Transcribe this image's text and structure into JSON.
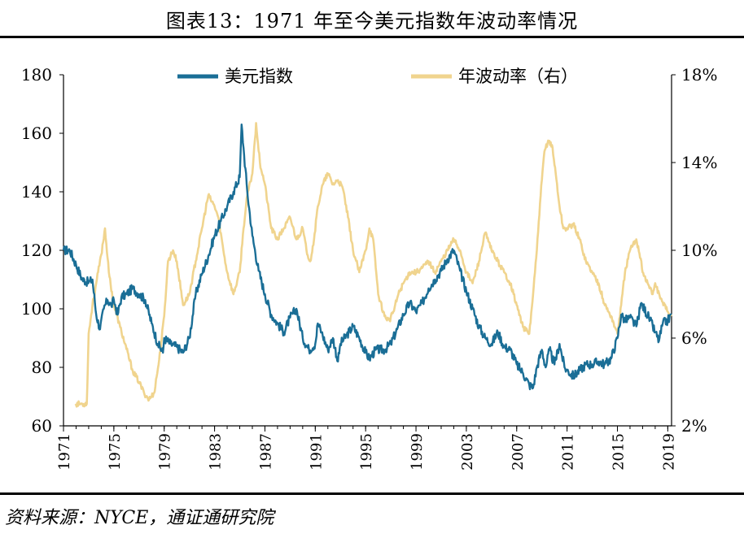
{
  "title": "图表13：1971 年至今美元指数年波动率情况",
  "source": "资料来源：NYCE，通证通研究院",
  "chart_data": {
    "type": "line",
    "title": "图表13：1971 年至今美元指数年波动率情况",
    "legend_position": "top",
    "grid": false,
    "x_ticks": [
      "1971",
      "1975",
      "1979",
      "1983",
      "1987",
      "1991",
      "1995",
      "1999",
      "2003",
      "2007",
      "2011",
      "2015",
      "2019"
    ],
    "xlim": [
      1971.0,
      2019.3
    ],
    "y_left": {
      "ylim": [
        60,
        180
      ],
      "ticks": [
        "60",
        "80",
        "100",
        "120",
        "140",
        "160",
        "180"
      ]
    },
    "y_right": {
      "ylim": [
        2,
        18
      ],
      "ticks": [
        "2%",
        "6%",
        "10%",
        "14%",
        "18%"
      ]
    },
    "series": [
      {
        "name": "美元指数",
        "axis": "left",
        "color": "#1a6e96",
        "x": [
          1971.0,
          1971.5,
          1972.0,
          1972.5,
          1973.0,
          1973.3,
          1973.6,
          1973.9,
          1974.2,
          1974.5,
          1974.8,
          1975.0,
          1975.3,
          1975.6,
          1976.0,
          1976.5,
          1977.0,
          1977.5,
          1978.0,
          1978.5,
          1978.9,
          1979.0,
          1979.5,
          1980.0,
          1980.5,
          1981.0,
          1981.5,
          1982.0,
          1982.5,
          1983.0,
          1983.5,
          1984.0,
          1984.5,
          1985.0,
          1985.15,
          1985.3,
          1985.6,
          1986.0,
          1986.5,
          1987.0,
          1987.5,
          1988.0,
          1988.5,
          1989.0,
          1989.5,
          1990.0,
          1990.5,
          1991.0,
          1991.2,
          1991.5,
          1992.0,
          1992.4,
          1992.8,
          1993.0,
          1993.5,
          1994.0,
          1994.5,
          1995.0,
          1995.3,
          1995.8,
          1996.5,
          1997.0,
          1997.5,
          1998.0,
          1998.5,
          1999.0,
          1999.5,
          2000.0,
          2000.5,
          2001.0,
          2001.5,
          2002.0,
          2002.5,
          2003.0,
          2003.5,
          2004.0,
          2004.5,
          2005.0,
          2005.5,
          2006.0,
          2006.5,
          2007.0,
          2007.5,
          2008.0,
          2008.3,
          2008.6,
          2009.0,
          2009.3,
          2009.6,
          2010.0,
          2010.4,
          2010.8,
          2011.0,
          2011.5,
          2012.0,
          2012.5,
          2013.0,
          2013.5,
          2014.0,
          2014.5,
          2015.0,
          2015.3,
          2015.6,
          2016.0,
          2016.5,
          2016.9,
          2017.0,
          2017.5,
          2018.0,
          2018.3,
          2018.6,
          2019.0,
          2019.3
        ],
        "values": [
          120,
          120,
          115,
          110,
          109,
          110,
          98,
          93,
          100,
          103,
          101,
          103,
          98,
          104,
          105,
          107,
          105,
          103,
          95,
          88,
          85,
          90,
          88,
          87,
          85,
          90,
          105,
          112,
          118,
          125,
          130,
          135,
          140,
          145,
          163,
          155,
          140,
          125,
          113,
          105,
          98,
          95,
          92,
          97,
          100,
          90,
          86,
          88,
          95,
          92,
          86,
          90,
          82,
          88,
          91,
          94,
          90,
          85,
          83,
          86,
          86,
          88,
          93,
          98,
          102,
          99,
          102,
          107,
          110,
          113,
          117,
          120,
          113,
          106,
          100,
          94,
          90,
          88,
          92,
          87,
          86,
          81,
          78,
          74,
          73,
          80,
          86,
          80,
          86,
          81,
          88,
          80,
          79,
          77,
          79,
          81,
          81,
          82,
          81,
          83,
          90,
          98,
          96,
          97,
          94,
          102,
          101,
          97,
          92,
          89,
          95,
          96,
          98
        ]
      },
      {
        "name": "年波动率（右）",
        "axis": "right",
        "color": "#f0d48e",
        "x": [
          1971.95,
          1972.5,
          1972.85,
          1973.0,
          1973.3,
          1973.6,
          1974.0,
          1974.3,
          1974.6,
          1975.0,
          1975.5,
          1976.0,
          1976.5,
          1977.0,
          1977.4,
          1977.8,
          1978.2,
          1978.6,
          1979.0,
          1979.3,
          1979.7,
          1980.0,
          1980.5,
          1981.0,
          1981.5,
          1982.0,
          1982.5,
          1983.0,
          1983.3,
          1983.7,
          1984.0,
          1984.5,
          1985.0,
          1985.3,
          1985.6,
          1986.0,
          1986.3,
          1986.6,
          1987.0,
          1987.5,
          1988.0,
          1988.5,
          1989.0,
          1989.5,
          1990.0,
          1990.3,
          1990.6,
          1990.9,
          1991.2,
          1991.6,
          1992.0,
          1992.4,
          1992.8,
          1993.2,
          1993.6,
          1994.0,
          1994.5,
          1995.0,
          1995.3,
          1995.6,
          1996.0,
          1996.5,
          1996.9,
          1997.2,
          1997.6,
          1998.0,
          1998.5,
          1999.0,
          1999.5,
          2000.0,
          2000.5,
          2001.0,
          2001.5,
          2002.0,
          2002.5,
          2003.0,
          2003.5,
          2004.0,
          2004.5,
          2005.0,
          2005.5,
          2006.0,
          2006.5,
          2007.0,
          2007.5,
          2008.0,
          2008.3,
          2008.6,
          2008.9,
          2009.2,
          2009.5,
          2009.8,
          2010.1,
          2010.4,
          2010.7,
          2011.0,
          2011.5,
          2012.0,
          2012.5,
          2013.0,
          2013.5,
          2014.0,
          2014.5,
          2014.8,
          2015.0,
          2015.3,
          2015.6,
          2016.0,
          2016.5,
          2016.9,
          2017.0,
          2017.4,
          2017.8,
          2018.0,
          2018.4,
          2018.8,
          2019.0,
          2019.3
        ],
        "values": [
          3.0,
          3.0,
          3.0,
          6.2,
          7.5,
          8.5,
          9.8,
          11.0,
          9.0,
          7.5,
          6.5,
          5.5,
          4.5,
          4.0,
          3.5,
          3.2,
          3.5,
          5.0,
          7.0,
          9.5,
          10.0,
          9.5,
          7.5,
          8.0,
          9.5,
          11.0,
          12.5,
          12.0,
          11.5,
          10.0,
          9.0,
          8.0,
          9.0,
          11.0,
          12.5,
          13.5,
          15.8,
          14.0,
          13.0,
          11.0,
          10.5,
          11.0,
          11.5,
          10.5,
          11.0,
          10.0,
          9.5,
          10.5,
          12.0,
          13.0,
          13.5,
          13.0,
          13.2,
          12.8,
          11.5,
          10.0,
          9.0,
          10.0,
          11.0,
          10.5,
          8.0,
          7.0,
          6.8,
          7.2,
          8.0,
          8.5,
          9.0,
          9.0,
          9.2,
          9.5,
          9.0,
          9.5,
          10.0,
          10.5,
          10.0,
          9.0,
          8.5,
          9.5,
          10.8,
          10.0,
          9.5,
          9.0,
          8.5,
          7.5,
          6.5,
          6.2,
          8.0,
          10.0,
          12.5,
          14.5,
          15.0,
          14.8,
          13.5,
          12.0,
          11.0,
          11.0,
          11.2,
          10.5,
          9.5,
          9.0,
          8.5,
          7.5,
          7.0,
          6.5,
          6.2,
          7.5,
          9.0,
          10.0,
          10.5,
          9.5,
          9.0,
          8.5,
          8.0,
          8.5,
          7.8,
          7.5,
          7.2,
          7.0
        ]
      }
    ]
  }
}
